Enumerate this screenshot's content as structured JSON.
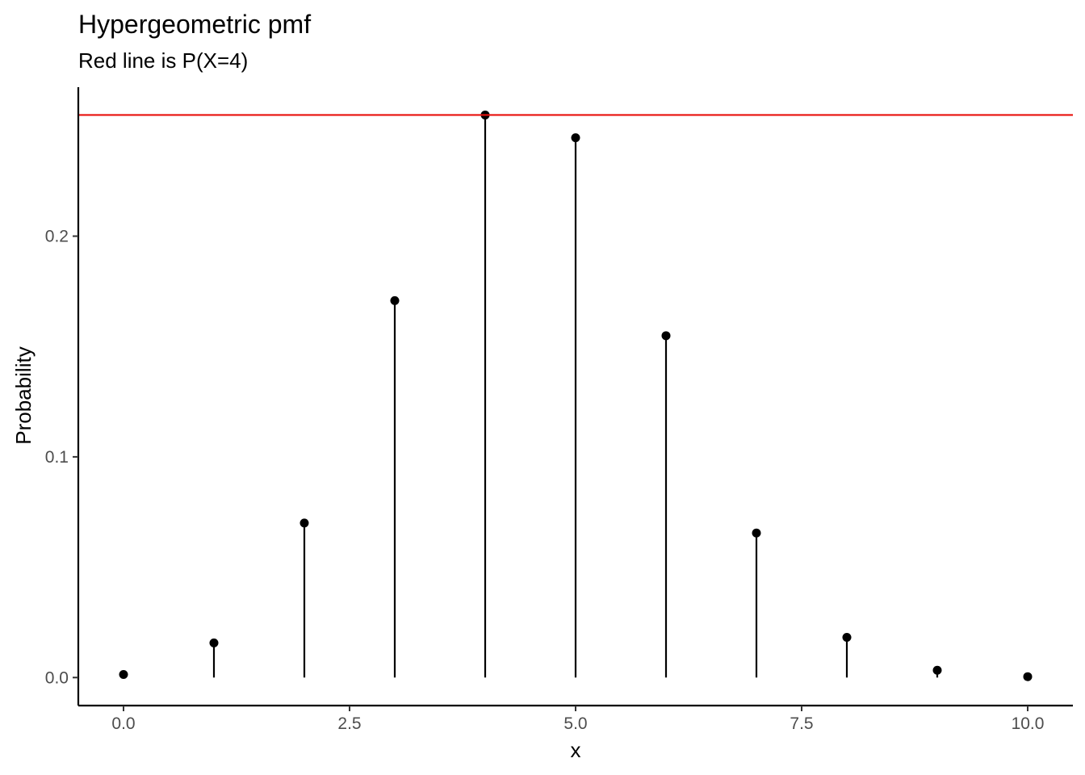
{
  "chart_data": {
    "type": "lollipop",
    "title": "Hypergeometric pmf",
    "subtitle": "Red line is P(X=4)",
    "xlabel": "x",
    "ylabel": "Probability",
    "x": [
      0,
      1,
      2,
      3,
      4,
      5,
      6,
      7,
      8,
      9,
      10
    ],
    "values": [
      0.0014,
      0.0157,
      0.07,
      0.1708,
      0.2549,
      0.2446,
      0.1549,
      0.0655,
      0.0182,
      0.0033,
      0.0004
    ],
    "reference_line": {
      "y": 0.2549,
      "color": "#e8100c"
    },
    "xlim": [
      -0.5,
      10.5
    ],
    "ylim": [
      -0.0127,
      0.2675
    ],
    "x_ticks": [
      0,
      2.5,
      5,
      7.5,
      10
    ],
    "x_tick_labels": [
      "0.0",
      "2.5",
      "5.0",
      "7.5",
      "10.0"
    ],
    "y_ticks": [
      0,
      0.1,
      0.2
    ],
    "y_tick_labels": [
      "0.0",
      "0.1",
      "0.2"
    ],
    "grid": false,
    "colors": {
      "points": "#000000",
      "stems": "#000000",
      "axis": "#000000"
    }
  }
}
